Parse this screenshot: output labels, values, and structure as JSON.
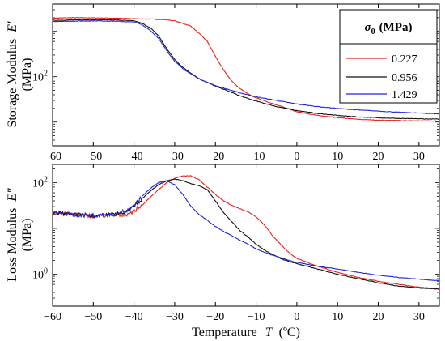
{
  "chart_data": [
    {
      "type": "line",
      "ylabel_line1": "Storage Modulus",
      "ylabel_symbol": "E′",
      "ylabel_line2": "(MPa)",
      "xlim": [
        -60,
        35
      ],
      "ylim": [
        3,
        4000
      ],
      "yscale": "log",
      "yticks": [
        {
          "value": 100,
          "label": "10",
          "exp": "2"
        }
      ],
      "xticks": [
        -60,
        -50,
        -40,
        -30,
        -20,
        -10,
        0,
        10,
        20,
        30
      ],
      "grid": false,
      "legend": {
        "title": "σ0 (MPa)",
        "title_symbol": "σ",
        "title_sub": "0",
        "title_units": "(MPa)",
        "placement": "top-right",
        "entries": [
          "0.227",
          "0.956",
          "1.429"
        ]
      },
      "series": [
        {
          "name": "0.227",
          "color": "#e8221c",
          "x": [
            -60,
            -55,
            -50,
            -45,
            -40,
            -35,
            -32,
            -30,
            -28,
            -26,
            -24,
            -22,
            -20,
            -18,
            -16,
            -14,
            -12,
            -10,
            -5,
            0,
            5,
            10,
            15,
            20,
            25,
            30,
            35
          ],
          "y": [
            1950,
            2000,
            1980,
            1950,
            1900,
            1850,
            1800,
            1700,
            1500,
            1300,
            900,
            600,
            280,
            140,
            80,
            55,
            42,
            34,
            24,
            17,
            14,
            12.5,
            11.5,
            11,
            10.8,
            10.6,
            10.5
          ]
        },
        {
          "name": "0.956",
          "color": "#111111",
          "x": [
            -60,
            -55,
            -50,
            -45,
            -40,
            -38,
            -36,
            -34,
            -32,
            -30,
            -28,
            -26,
            -24,
            -22,
            -20,
            -18,
            -16,
            -14,
            -12,
            -10,
            -5,
            0,
            5,
            10,
            15,
            20,
            25,
            30,
            35
          ],
          "y": [
            1750,
            1780,
            1800,
            1790,
            1700,
            1500,
            1200,
            800,
            420,
            240,
            160,
            120,
            90,
            75,
            62,
            53,
            45,
            38,
            33,
            29,
            22,
            18,
            15.5,
            14,
            13,
            12.5,
            12,
            11.8,
            11.6
          ]
        },
        {
          "name": "1.429",
          "color": "#1f24d8",
          "x": [
            -60,
            -55,
            -50,
            -45,
            -40,
            -38,
            -36,
            -34,
            -32,
            -30,
            -28,
            -26,
            -24,
            -22,
            -20,
            -18,
            -16,
            -14,
            -12,
            -10,
            -5,
            0,
            5,
            10,
            15,
            20,
            25,
            30,
            35
          ],
          "y": [
            1650,
            1680,
            1700,
            1680,
            1600,
            1400,
            1050,
            700,
            380,
            220,
            150,
            115,
            90,
            75,
            64,
            56,
            50,
            44,
            40,
            36,
            30,
            25,
            22,
            20,
            18.5,
            17.5,
            16.5,
            15.8,
            15.2
          ]
        }
      ]
    },
    {
      "type": "line",
      "ylabel_line1": "Loss Modulus",
      "ylabel_symbol": "E″",
      "ylabel_line2": "(MPa)",
      "xlabel": "Temperature",
      "xlabel_symbol": "T",
      "xlabel_units": "(ºC)",
      "xlim": [
        -60,
        35
      ],
      "ylim": [
        0.2,
        250
      ],
      "yscale": "log",
      "yticks": [
        {
          "value": 1,
          "label": "10",
          "exp": "0"
        },
        {
          "value": 100,
          "label": "10",
          "exp": "2"
        }
      ],
      "xticks": [
        -60,
        -50,
        -40,
        -30,
        -20,
        -10,
        0,
        10,
        20,
        30
      ],
      "grid": false,
      "series": [
        {
          "name": "0.227",
          "color": "#e8221c",
          "x": [
            -60,
            -55,
            -50,
            -45,
            -42,
            -40,
            -38,
            -36,
            -34,
            -32,
            -30,
            -28,
            -26,
            -24,
            -22,
            -20,
            -18,
            -16,
            -14,
            -12,
            -10,
            -8,
            -6,
            -4,
            -2,
            0,
            5,
            10,
            15,
            20,
            25,
            30,
            35
          ],
          "y": [
            22,
            20,
            19,
            19,
            20,
            24,
            32,
            48,
            70,
            100,
            125,
            140,
            140,
            115,
            80,
            55,
            40,
            32,
            27,
            23,
            18,
            12,
            7,
            4.5,
            3,
            2.2,
            1.5,
            1.1,
            0.85,
            0.7,
            0.6,
            0.52,
            0.48
          ]
        },
        {
          "name": "0.956",
          "color": "#111111",
          "x": [
            -60,
            -55,
            -50,
            -45,
            -42,
            -40,
            -38,
            -36,
            -34,
            -32,
            -30,
            -28,
            -26,
            -24,
            -22,
            -20,
            -18,
            -16,
            -14,
            -12,
            -10,
            -8,
            -6,
            -4,
            -2,
            0,
            5,
            10,
            15,
            20,
            25,
            30,
            35
          ],
          "y": [
            22,
            20,
            19,
            20,
            23,
            30,
            45,
            65,
            90,
            110,
            120,
            110,
            95,
            85,
            70,
            40,
            22,
            14,
            9,
            6.5,
            4.5,
            3.4,
            2.7,
            2.2,
            1.9,
            1.7,
            1.3,
            1.0,
            0.8,
            0.65,
            0.55,
            0.5,
            0.47
          ]
        },
        {
          "name": "1.429",
          "color": "#1f24d8",
          "x": [
            -60,
            -55,
            -50,
            -45,
            -42,
            -40,
            -38,
            -36,
            -34,
            -32,
            -30,
            -28,
            -26,
            -24,
            -22,
            -20,
            -18,
            -16,
            -14,
            -12,
            -10,
            -8,
            -6,
            -4,
            -2,
            0,
            5,
            10,
            15,
            20,
            25,
            30,
            35
          ],
          "y": [
            22,
            20,
            19,
            20,
            24,
            32,
            50,
            75,
            100,
            110,
            90,
            55,
            30,
            20,
            15,
            11,
            8.5,
            7,
            5.5,
            4.5,
            3.6,
            3.0,
            2.6,
            2.3,
            2.0,
            1.8,
            1.5,
            1.3,
            1.1,
            0.95,
            0.85,
            0.78,
            0.72
          ]
        }
      ]
    }
  ]
}
